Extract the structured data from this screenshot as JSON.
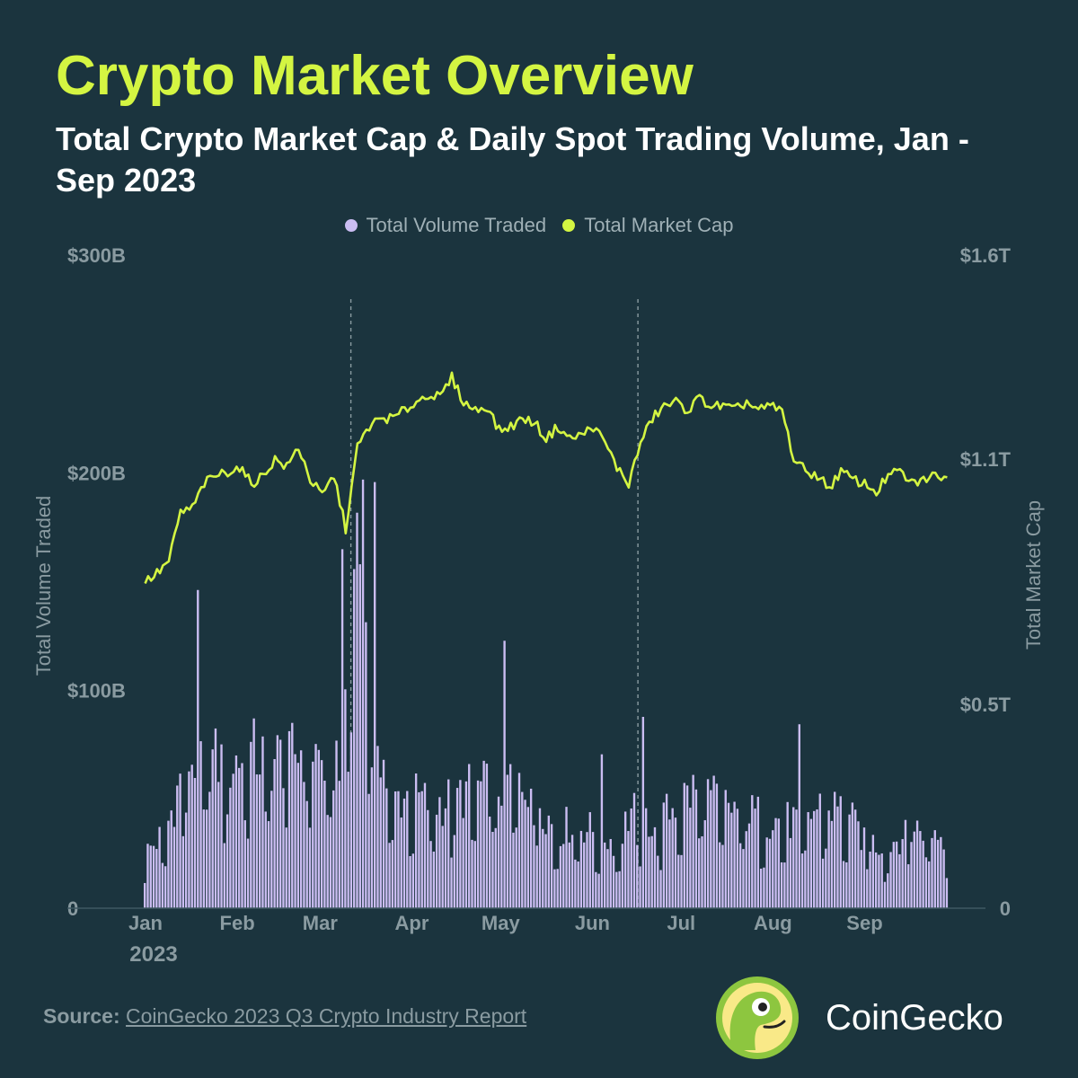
{
  "header": {
    "title": "Crypto Market Overview",
    "subtitle": "Total Crypto Market Cap & Daily Spot Trading Volume, Jan - Sep 2023"
  },
  "legend": {
    "volume_label": "Total Volume Traded",
    "volume_color": "#cbbdf2",
    "cap_label": "Total Market Cap",
    "cap_color": "#d4f542"
  },
  "footer": {
    "source_label": "Source:",
    "source_text": "CoinGecko 2023 Q3 Crypto Industry Report",
    "brand_name": "CoinGecko",
    "logo_icon": "coingecko-logo-icon"
  },
  "chart_data": {
    "type": "bar+line",
    "x_tick_labels": [
      "Jan",
      "Feb",
      "Mar",
      "Apr",
      "May",
      "Jun",
      "Jul",
      "Aug",
      "Sep"
    ],
    "x_year_label": "2023",
    "x_range": [
      "2023-01-01",
      "2023-09-30"
    ],
    "left_axis": {
      "label": "Total Volume Traded",
      "unit": "USD billions",
      "ticks": [
        0,
        100,
        200,
        300
      ],
      "tick_labels": [
        "0",
        "$100B",
        "$200B",
        "$300B"
      ],
      "range": [
        0,
        300
      ]
    },
    "right_axis": {
      "label": "Total Market Cap",
      "unit": "USD trillions",
      "ticks": [
        0,
        0.5,
        1.1,
        1.6
      ],
      "tick_labels": [
        "0",
        "$0.5T",
        "$1.1T",
        "$1.6T"
      ],
      "range": [
        0,
        1.6
      ]
    },
    "reference_lines": [
      "2023-03-12",
      "2023-06-17"
    ],
    "grid": false,
    "legend_position": "top-center",
    "series": [
      {
        "name": "Total Volume Traded",
        "type": "bar",
        "axis": "left",
        "x": [
          "2023-01-01",
          "2023-01-08",
          "2023-01-15",
          "2023-01-22",
          "2023-01-29",
          "2023-02-05",
          "2023-02-12",
          "2023-02-19",
          "2023-02-26",
          "2023-03-05",
          "2023-03-09",
          "2023-03-11",
          "2023-03-13",
          "2023-03-15",
          "2023-03-18",
          "2023-03-25",
          "2023-04-01",
          "2023-04-08",
          "2023-04-15",
          "2023-04-22",
          "2023-04-29",
          "2023-05-06",
          "2023-05-13",
          "2023-05-20",
          "2023-05-27",
          "2023-06-03",
          "2023-06-10",
          "2023-06-15",
          "2023-06-24",
          "2023-07-01",
          "2023-07-08",
          "2023-07-15",
          "2023-07-22",
          "2023-07-29",
          "2023-08-05",
          "2023-08-12",
          "2023-08-19",
          "2023-08-26",
          "2023-09-02",
          "2023-09-09",
          "2023-09-16",
          "2023-09-23",
          "2023-09-30"
        ],
        "y": [
          25,
          35,
          68,
          70,
          65,
          72,
          68,
          70,
          75,
          62,
          78,
          120,
          160,
          210,
          110,
          50,
          52,
          48,
          50,
          55,
          55,
          60,
          58,
          35,
          40,
          35,
          30,
          45,
          38,
          50,
          55,
          48,
          45,
          42,
          40,
          40,
          48,
          45,
          32,
          28,
          35,
          38,
          32
        ]
      },
      {
        "name": "Total Market Cap",
        "type": "line",
        "axis": "right",
        "x": [
          "2023-01-01",
          "2023-01-05",
          "2023-01-09",
          "2023-01-13",
          "2023-01-17",
          "2023-01-21",
          "2023-01-25",
          "2023-01-29",
          "2023-02-02",
          "2023-02-06",
          "2023-02-10",
          "2023-02-14",
          "2023-02-18",
          "2023-02-22",
          "2023-02-26",
          "2023-03-02",
          "2023-03-06",
          "2023-03-10",
          "2023-03-14",
          "2023-03-18",
          "2023-03-22",
          "2023-03-26",
          "2023-03-30",
          "2023-04-03",
          "2023-04-07",
          "2023-04-11",
          "2023-04-15",
          "2023-04-19",
          "2023-04-23",
          "2023-04-27",
          "2023-05-01",
          "2023-05-05",
          "2023-05-09",
          "2023-05-13",
          "2023-05-17",
          "2023-05-21",
          "2023-05-25",
          "2023-05-29",
          "2023-06-02",
          "2023-06-06",
          "2023-06-10",
          "2023-06-14",
          "2023-06-18",
          "2023-06-22",
          "2023-06-26",
          "2023-06-30",
          "2023-07-04",
          "2023-07-08",
          "2023-07-12",
          "2023-07-16",
          "2023-07-20",
          "2023-07-24",
          "2023-07-28",
          "2023-08-01",
          "2023-08-05",
          "2023-08-09",
          "2023-08-13",
          "2023-08-17",
          "2023-08-21",
          "2023-08-25",
          "2023-08-29",
          "2023-09-02",
          "2023-09-06",
          "2023-09-10",
          "2023-09-14",
          "2023-09-18",
          "2023-09-22",
          "2023-09-26",
          "2023-09-30"
        ],
        "y": [
          0.8,
          0.82,
          0.85,
          0.97,
          0.98,
          1.04,
          1.06,
          1.07,
          1.08,
          1.04,
          1.06,
          1.1,
          1.08,
          1.13,
          1.05,
          1.01,
          1.06,
          0.93,
          1.13,
          1.18,
          1.2,
          1.2,
          1.22,
          1.24,
          1.26,
          1.25,
          1.3,
          1.24,
          1.22,
          1.23,
          1.17,
          1.18,
          1.2,
          1.19,
          1.15,
          1.18,
          1.15,
          1.16,
          1.18,
          1.14,
          1.08,
          1.04,
          1.14,
          1.2,
          1.23,
          1.24,
          1.22,
          1.25,
          1.23,
          1.23,
          1.22,
          1.24,
          1.22,
          1.23,
          1.22,
          1.1,
          1.07,
          1.06,
          1.03,
          1.07,
          1.05,
          1.04,
          1.02,
          1.06,
          1.07,
          1.04,
          1.05,
          1.06,
          1.06
        ]
      }
    ]
  }
}
